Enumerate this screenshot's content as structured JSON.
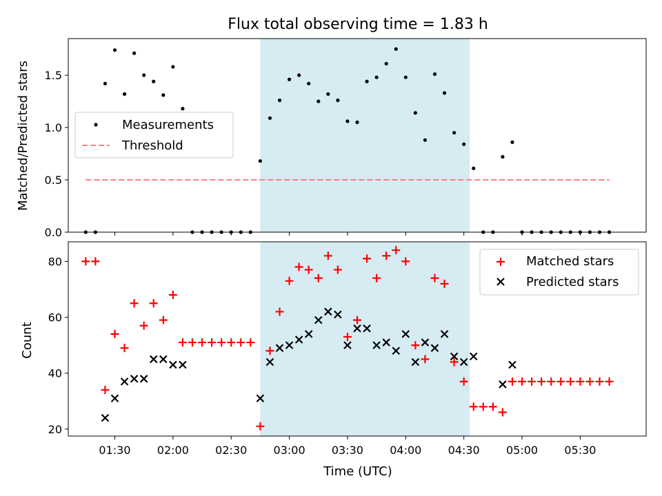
{
  "chart_data": {
    "title": "Flux total observing time = 1.83 h",
    "xlabel": "Time (UTC)",
    "x_unit": "UTC time (hh:mm)",
    "xlim": [
      "01:06",
      "06:04"
    ],
    "xticks": [
      "01:30",
      "02:00",
      "02:30",
      "03:00",
      "03:30",
      "04:00",
      "04:30",
      "05:00",
      "05:30"
    ],
    "shaded_interval": {
      "start": "02:45",
      "end": "04:33",
      "color": "#add8e6"
    },
    "panels": [
      {
        "name": "ratio",
        "type": "scatter",
        "ylabel": "Matched/Predicted stars",
        "ylim": [
          0,
          1.85
        ],
        "yticks": [
          "0.0",
          "0.5",
          "1.0",
          "1.5"
        ],
        "grid": false,
        "legend_position": "center-left",
        "series": [
          {
            "name": "Measurements",
            "marker": "dot",
            "color": "#000000",
            "points": [
              [
                "01:15",
                0
              ],
              [
                "01:20",
                0
              ],
              [
                "01:25",
                1.42
              ],
              [
                "01:30",
                1.74
              ],
              [
                "01:35",
                1.32
              ],
              [
                "01:40",
                1.71
              ],
              [
                "01:45",
                1.5
              ],
              [
                "01:50",
                1.44
              ],
              [
                "01:55",
                1.31
              ],
              [
                "02:00",
                1.58
              ],
              [
                "02:05",
                1.18
              ],
              [
                "02:10",
                0
              ],
              [
                "02:15",
                0
              ],
              [
                "02:20",
                0
              ],
              [
                "02:25",
                0
              ],
              [
                "02:30",
                0
              ],
              [
                "02:35",
                0
              ],
              [
                "02:40",
                0
              ],
              [
                "02:45",
                0.68
              ],
              [
                "02:50",
                1.09
              ],
              [
                "02:55",
                1.26
              ],
              [
                "03:00",
                1.46
              ],
              [
                "03:05",
                1.5
              ],
              [
                "03:10",
                1.42
              ],
              [
                "03:15",
                1.25
              ],
              [
                "03:20",
                1.32
              ],
              [
                "03:25",
                1.26
              ],
              [
                "03:30",
                1.06
              ],
              [
                "03:35",
                1.05
              ],
              [
                "03:40",
                1.44
              ],
              [
                "03:45",
                1.48
              ],
              [
                "03:50",
                1.61
              ],
              [
                "03:55",
                1.75
              ],
              [
                "04:00",
                1.48
              ],
              [
                "04:05",
                1.14
              ],
              [
                "04:10",
                0.88
              ],
              [
                "04:15",
                1.51
              ],
              [
                "04:20",
                1.33
              ],
              [
                "04:25",
                0.95
              ],
              [
                "04:30",
                0.84
              ],
              [
                "04:35",
                0.61
              ],
              [
                "04:40",
                0
              ],
              [
                "04:45",
                0
              ],
              [
                "04:50",
                0.72
              ],
              [
                "04:55",
                0.86
              ],
              [
                "05:00",
                0
              ],
              [
                "05:05",
                0
              ],
              [
                "05:10",
                0
              ],
              [
                "05:15",
                0
              ],
              [
                "05:20",
                0
              ],
              [
                "05:25",
                0
              ],
              [
                "05:30",
                0
              ],
              [
                "05:35",
                0
              ],
              [
                "05:40",
                0
              ],
              [
                "05:45",
                0
              ]
            ]
          },
          {
            "name": "Threshold",
            "marker": "dashed-line",
            "color": "#ff7f7f",
            "points": [
              [
                "01:15",
                0.5
              ],
              [
                "05:45",
                0.5
              ]
            ]
          }
        ]
      },
      {
        "name": "counts",
        "type": "scatter",
        "ylabel": "Count",
        "ylim": [
          17.5,
          87
        ],
        "yticks": [
          "20",
          "40",
          "60",
          "80"
        ],
        "grid": false,
        "legend_position": "top-right",
        "series": [
          {
            "name": "Matched stars",
            "marker": "plus",
            "color": "#ff0000",
            "points": [
              [
                "01:15",
                80
              ],
              [
                "01:20",
                80
              ],
              [
                "01:25",
                34
              ],
              [
                "01:30",
                54
              ],
              [
                "01:35",
                49
              ],
              [
                "01:40",
                65
              ],
              [
                "01:45",
                57
              ],
              [
                "01:50",
                65
              ],
              [
                "01:55",
                59
              ],
              [
                "02:00",
                68
              ],
              [
                "02:05",
                51
              ],
              [
                "02:10",
                51
              ],
              [
                "02:15",
                51
              ],
              [
                "02:20",
                51
              ],
              [
                "02:25",
                51
              ],
              [
                "02:30",
                51
              ],
              [
                "02:35",
                51
              ],
              [
                "02:40",
                51
              ],
              [
                "02:45",
                21
              ],
              [
                "02:50",
                48
              ],
              [
                "02:55",
                62
              ],
              [
                "03:00",
                73
              ],
              [
                "03:05",
                78
              ],
              [
                "03:10",
                77
              ],
              [
                "03:15",
                74
              ],
              [
                "03:20",
                82
              ],
              [
                "03:25",
                77
              ],
              [
                "03:30",
                53
              ],
              [
                "03:35",
                59
              ],
              [
                "03:40",
                81
              ],
              [
                "03:45",
                74
              ],
              [
                "03:50",
                82
              ],
              [
                "03:55",
                84
              ],
              [
                "04:00",
                80
              ],
              [
                "04:05",
                50
              ],
              [
                "04:10",
                45
              ],
              [
                "04:15",
                74
              ],
              [
                "04:20",
                72
              ],
              [
                "04:25",
                44
              ],
              [
                "04:30",
                37
              ],
              [
                "04:35",
                28
              ],
              [
                "04:40",
                28
              ],
              [
                "04:45",
                28
              ],
              [
                "04:50",
                26
              ],
              [
                "04:55",
                37
              ],
              [
                "05:00",
                37
              ],
              [
                "05:05",
                37
              ],
              [
                "05:10",
                37
              ],
              [
                "05:15",
                37
              ],
              [
                "05:20",
                37
              ],
              [
                "05:25",
                37
              ],
              [
                "05:30",
                37
              ],
              [
                "05:35",
                37
              ],
              [
                "05:40",
                37
              ],
              [
                "05:45",
                37
              ]
            ]
          },
          {
            "name": "Predicted stars",
            "marker": "x",
            "color": "#000000",
            "points": [
              [
                "01:25",
                24
              ],
              [
                "01:30",
                31
              ],
              [
                "01:35",
                37
              ],
              [
                "01:40",
                38
              ],
              [
                "01:45",
                38
              ],
              [
                "01:50",
                45
              ],
              [
                "01:55",
                45
              ],
              [
                "02:00",
                43
              ],
              [
                "02:05",
                43
              ],
              [
                "02:45",
                31
              ],
              [
                "02:50",
                44
              ],
              [
                "02:55",
                49
              ],
              [
                "03:00",
                50
              ],
              [
                "03:05",
                52
              ],
              [
                "03:10",
                54
              ],
              [
                "03:15",
                59
              ],
              [
                "03:20",
                62
              ],
              [
                "03:25",
                61
              ],
              [
                "03:30",
                50
              ],
              [
                "03:35",
                56
              ],
              [
                "03:40",
                56
              ],
              [
                "03:45",
                50
              ],
              [
                "03:50",
                51
              ],
              [
                "03:55",
                48
              ],
              [
                "04:00",
                54
              ],
              [
                "04:05",
                44
              ],
              [
                "04:10",
                51
              ],
              [
                "04:15",
                49
              ],
              [
                "04:20",
                54
              ],
              [
                "04:25",
                46
              ],
              [
                "04:30",
                44
              ],
              [
                "04:35",
                46
              ],
              [
                "04:50",
                36
              ],
              [
                "04:55",
                43
              ]
            ]
          }
        ]
      }
    ]
  }
}
